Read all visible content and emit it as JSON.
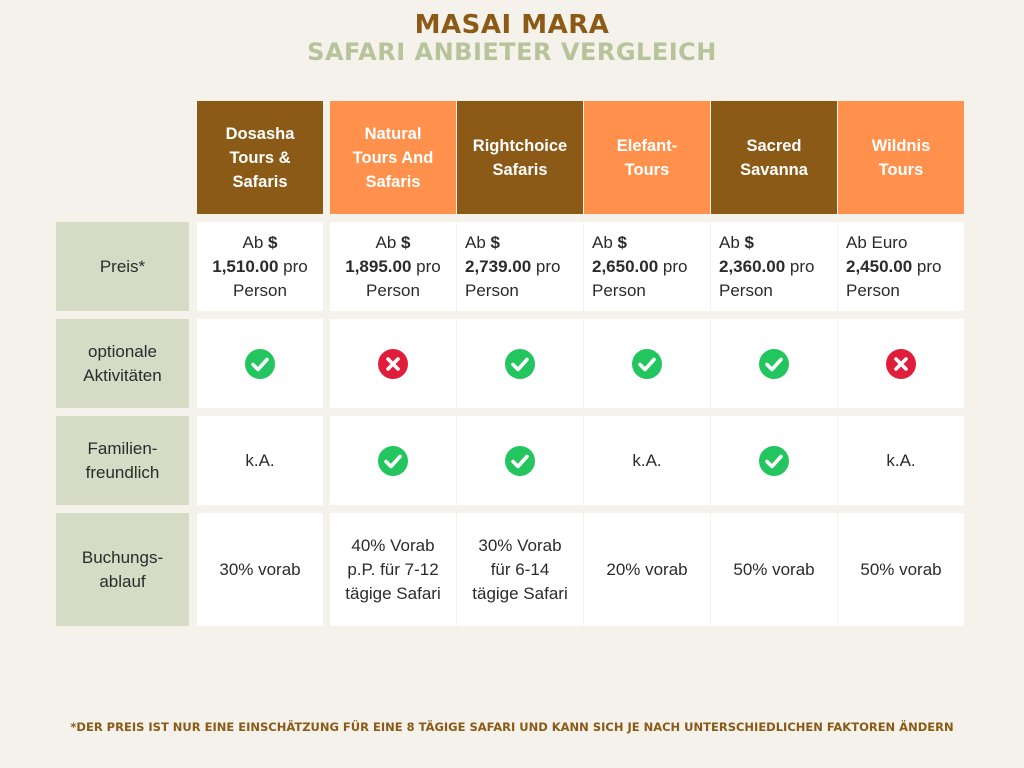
{
  "title": "MASAI MARA",
  "subtitle": "SAFARI ANBIETER VERGLEICH",
  "chart_data": {
    "type": "table",
    "providers": [
      {
        "name": "Dosasha Tours & Safaris",
        "header_color": "#8b5a16",
        "price_prefix": "Ab",
        "price_currency": "$",
        "price_value": "1,510.00",
        "price_suffix": "pro Person",
        "optional_activities": "yes",
        "family_friendly": "k.A.",
        "booking": "30% vorab"
      },
      {
        "name": "Natural Tours And Safaris",
        "header_color": "#ff914d",
        "price_prefix": "Ab",
        "price_currency": "$",
        "price_value": "1,895.00",
        "price_suffix": "pro Person",
        "optional_activities": "no",
        "family_friendly": "yes",
        "booking": "40% Vorab p.P. für 7-12 tägige Safari"
      },
      {
        "name": "Rightchoice Safaris",
        "header_color": "#8b5a16",
        "price_prefix": "Ab",
        "price_currency": "$",
        "price_value": "2,739.00",
        "price_suffix": "pro Person",
        "optional_activities": "yes",
        "family_friendly": "yes",
        "booking": "30% Vorab für 6-14 tägige Safari"
      },
      {
        "name": "Elefant-Tours",
        "header_color": "#ff914d",
        "price_prefix": "Ab",
        "price_currency": "$",
        "price_value": "2,650.00",
        "price_suffix": "pro Person",
        "optional_activities": "yes",
        "family_friendly": "k.A.",
        "booking": "20% vorab"
      },
      {
        "name": "Sacred Savanna",
        "header_color": "#8b5a16",
        "price_prefix": "Ab",
        "price_currency": "$",
        "price_value": "2,360.00",
        "price_suffix": "pro Person",
        "optional_activities": "yes",
        "family_friendly": "yes",
        "booking": "50% vorab"
      },
      {
        "name": "Wildnis Tours",
        "header_color": "#ff914d",
        "price_prefix": "Ab Euro",
        "price_currency": "",
        "price_value": "2,450.00",
        "price_suffix": "pro Person",
        "optional_activities": "no",
        "family_friendly": "k.A.",
        "booking": "50% vorab"
      }
    ],
    "row_labels": [
      "Preis*",
      "optionale Aktivitäten",
      "Familien-freundlich",
      "Buchungs-ablauf"
    ]
  },
  "footnote": "*DER PREIS IST NUR EINE EINSCHÄTZUNG FÜR EINE 8 TÄGIGE SAFARI UND KANN SICH JE NACH UNTERSCHIEDLICHEN FAKTOREN ÄNDERN",
  "colors": {
    "brown": "#8b5a16",
    "orange": "#ff914d",
    "sage": "#d6dbc6",
    "check": "#22c55e",
    "cross": "#e11d3c"
  },
  "icons": {
    "yes": "check-circle-icon",
    "no": "x-circle-icon"
  }
}
